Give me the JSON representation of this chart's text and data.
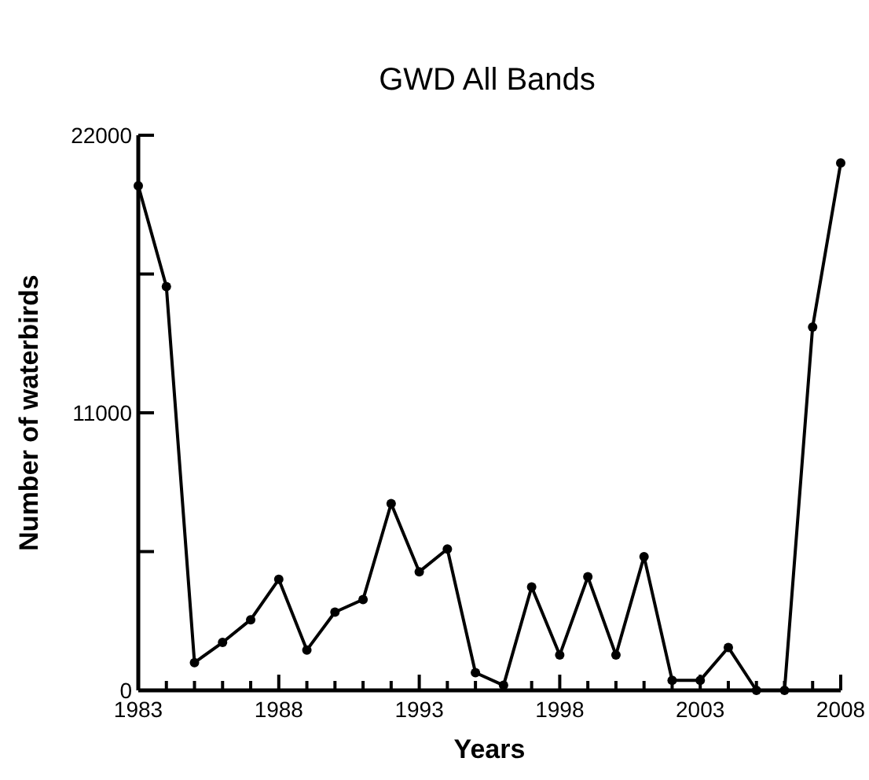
{
  "chart_data": {
    "type": "line",
    "title": "GWD All Bands",
    "xlabel": "Years",
    "ylabel": "Number of waterbirds",
    "x": [
      1983,
      1984,
      1985,
      1986,
      1987,
      1988,
      1989,
      1990,
      1991,
      1992,
      1993,
      1994,
      1995,
      1996,
      1997,
      1998,
      1999,
      2000,
      2001,
      2002,
      2003,
      2004,
      2005,
      2006,
      2007,
      2008
    ],
    "series": [
      {
        "color": "#000000",
        "values": [
          20000,
          16000,
          1100,
          1900,
          2800,
          4400,
          1600,
          3100,
          3600,
          7400,
          4700,
          5600,
          700,
          200,
          4100,
          1400,
          4500,
          1400,
          5300,
          400,
          400,
          1700,
          0,
          0,
          14400,
          20900
        ]
      }
    ],
    "xlim": [
      1983,
      2008
    ],
    "xticks": [
      1983,
      {
        "value": 1984,
        "label": null
      },
      {
        "value": 1985,
        "label": null
      },
      {
        "value": 1986,
        "label": null
      },
      {
        "value": 1987,
        "label": null
      },
      1988,
      {
        "value": 1989,
        "label": null
      },
      {
        "value": 1990,
        "label": null
      },
      {
        "value": 1991,
        "label": null
      },
      {
        "value": 1992,
        "label": null
      },
      1993,
      {
        "value": 1994,
        "label": null
      },
      {
        "value": 1995,
        "label": null
      },
      {
        "value": 1996,
        "label": null
      },
      {
        "value": 1997,
        "label": null
      },
      1998,
      {
        "value": 1999,
        "label": null
      },
      {
        "value": 2000,
        "label": null
      },
      {
        "value": 2001,
        "label": null
      },
      {
        "value": 2002,
        "label": null
      },
      2003,
      {
        "value": 2004,
        "label": null
      },
      {
        "value": 2005,
        "label": null
      },
      {
        "value": 2006,
        "label": null
      },
      {
        "value": 2007,
        "label": null
      },
      2008
    ],
    "ylim": [
      0,
      22000
    ],
    "yticks": [
      0,
      {
        "value": 5500,
        "label": null
      },
      11000,
      {
        "value": 16500,
        "label": null
      },
      22000
    ],
    "marker": "circle",
    "line_style": "solid",
    "grid": false
  }
}
